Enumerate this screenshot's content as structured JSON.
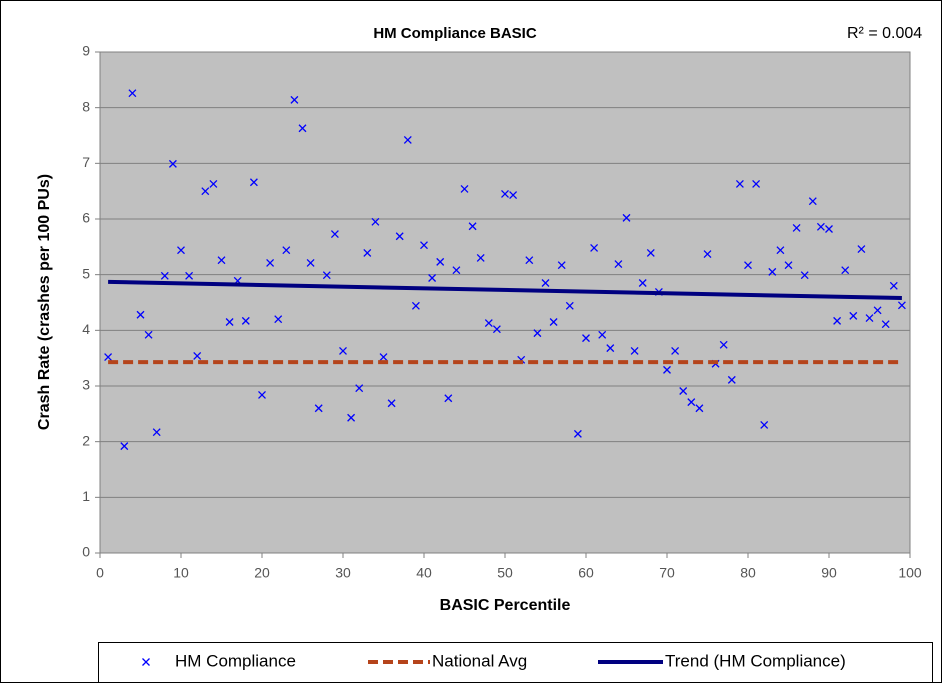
{
  "chart_data": {
    "type": "scatter",
    "title": "HM Compliance BASIC",
    "annotation": "R² = 0.004",
    "x_label": "BASIC Percentile",
    "y_label": "Crash Rate (crashes per 100 PUs)",
    "xlim": [
      0,
      100
    ],
    "ylim": [
      0,
      9
    ],
    "xticks": [
      0,
      10,
      20,
      30,
      40,
      50,
      60,
      70,
      80,
      90,
      100
    ],
    "yticks": [
      0,
      1,
      2,
      3,
      4,
      5,
      6,
      7,
      8,
      9
    ],
    "grid": true,
    "legend": "bottom",
    "series": [
      {
        "name": "HM Compliance",
        "type": "scatter",
        "marker": "x",
        "color": "#0000ff",
        "x": [
          1,
          3,
          4,
          5,
          6,
          7,
          8,
          9,
          10,
          11,
          12,
          13,
          14,
          15,
          16,
          17,
          18,
          19,
          20,
          21,
          22,
          23,
          24,
          25,
          26,
          27,
          28,
          29,
          30,
          31,
          32,
          33,
          34,
          35,
          36,
          37,
          38,
          39,
          40,
          41,
          42,
          43,
          44,
          45,
          46,
          47,
          48,
          49,
          50,
          51,
          52,
          53,
          54,
          55,
          56,
          57,
          58,
          59,
          60,
          61,
          62,
          63,
          64,
          65,
          66,
          67,
          68,
          69,
          70,
          71,
          72,
          73,
          74,
          75,
          76,
          77,
          78,
          79,
          80,
          81,
          82,
          83,
          84,
          85,
          86,
          87,
          88,
          89,
          90,
          91,
          92,
          93,
          94,
          95,
          96,
          97,
          98,
          99
        ],
        "values": [
          3.52,
          1.92,
          8.26,
          4.28,
          3.92,
          2.17,
          4.98,
          6.99,
          5.44,
          4.98,
          3.54,
          6.5,
          6.63,
          5.26,
          4.15,
          4.89,
          4.17,
          6.66,
          2.84,
          5.21,
          4.2,
          5.44,
          8.14,
          7.63,
          5.21,
          2.6,
          4.99,
          5.73,
          3.63,
          2.43,
          2.96,
          5.39,
          5.95,
          3.52,
          2.69,
          5.69,
          7.42,
          4.44,
          5.53,
          4.94,
          5.23,
          2.78,
          5.08,
          6.54,
          5.87,
          5.3,
          4.13,
          4.02,
          6.45,
          6.43,
          3.47,
          5.26,
          3.95,
          4.85,
          4.15,
          5.17,
          4.44,
          2.14,
          3.86,
          5.48,
          3.92,
          3.68,
          5.19,
          6.02,
          3.63,
          4.85,
          5.39,
          4.69,
          3.29,
          3.63,
          2.91,
          2.71,
          2.6,
          5.37,
          3.4,
          3.74,
          3.11,
          6.63,
          5.17,
          6.63,
          2.3,
          5.05,
          5.44,
          5.17,
          5.84,
          4.99,
          6.32,
          5.86,
          5.82,
          4.17,
          5.08,
          4.26,
          5.46,
          4.22,
          4.36,
          4.11,
          4.8,
          4.45
        ]
      },
      {
        "name": "National Avg",
        "type": "line",
        "dashed": true,
        "color": "#b5441b",
        "x": [
          1,
          99
        ],
        "values": [
          3.43,
          3.43
        ]
      },
      {
        "name": "Trend (HM Compliance)",
        "type": "line",
        "dashed": false,
        "color": "#000080",
        "x": [
          1,
          99
        ],
        "values": [
          4.87,
          4.58
        ]
      }
    ]
  }
}
